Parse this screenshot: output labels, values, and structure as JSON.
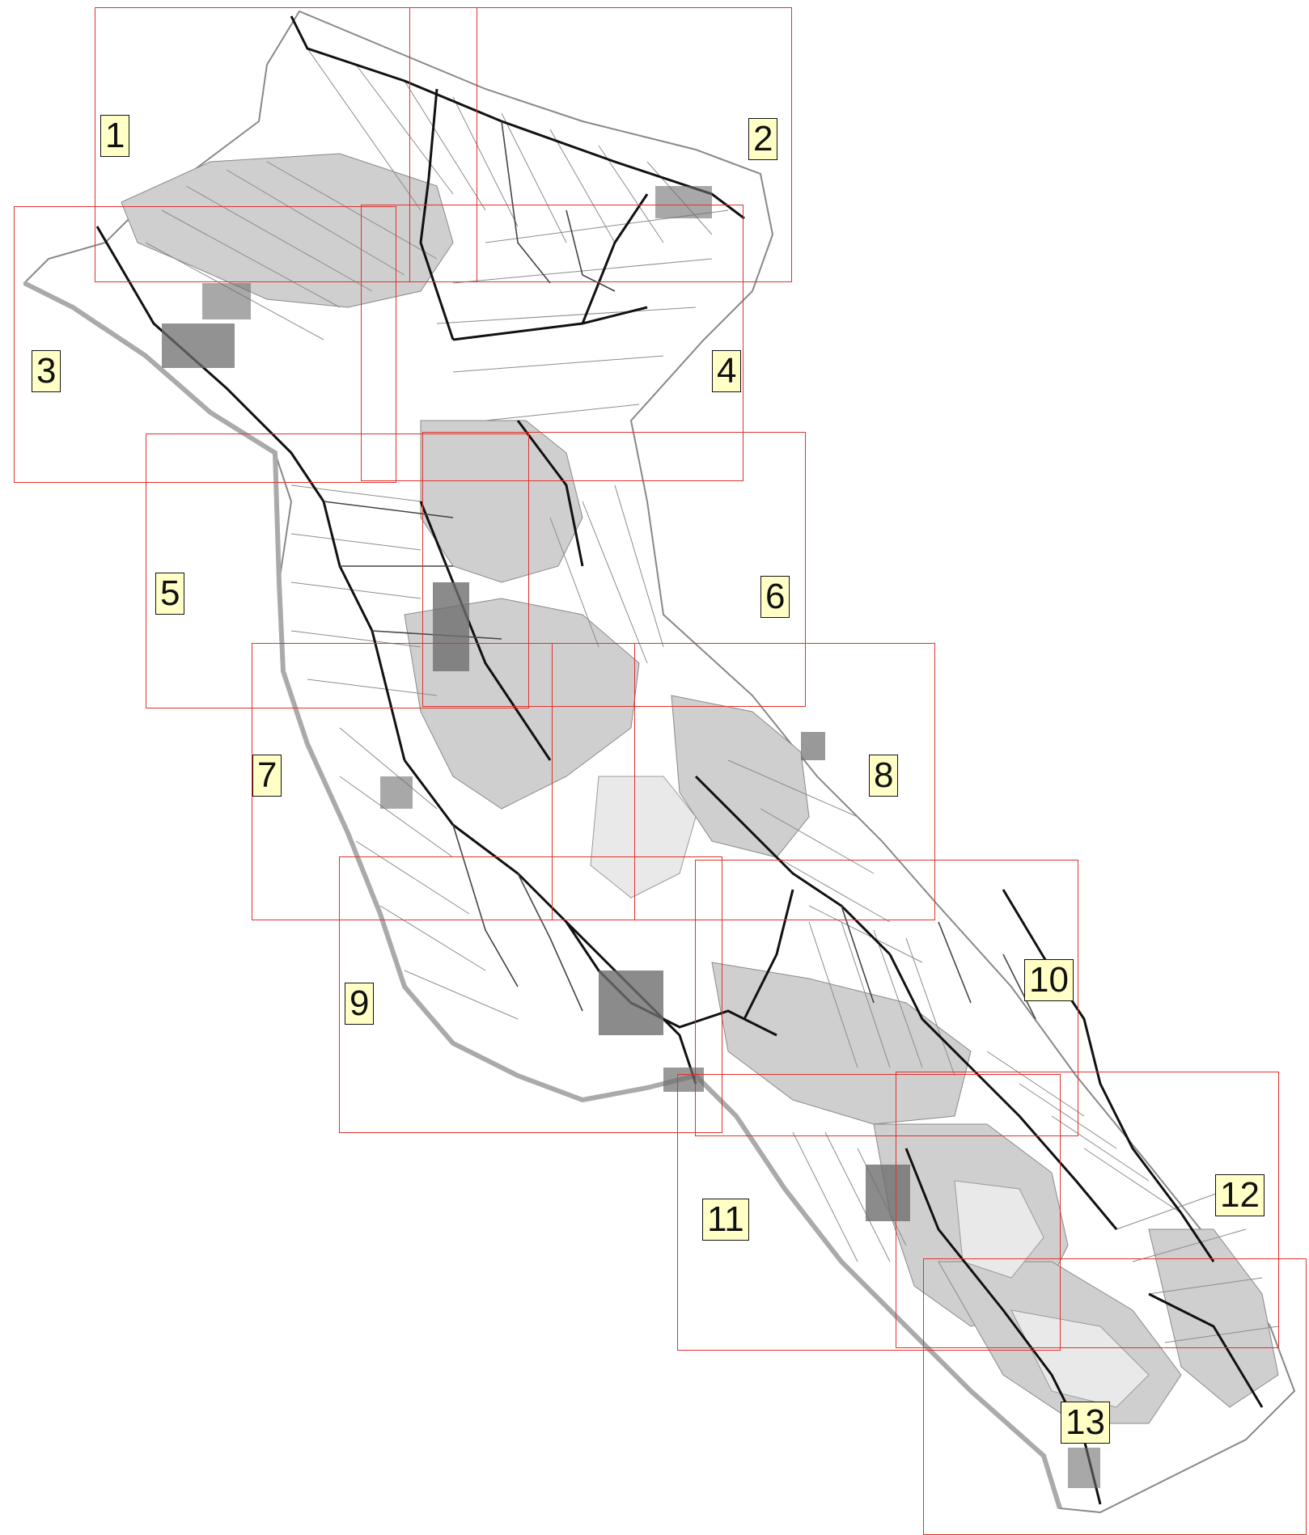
{
  "map": {
    "colors": {
      "background": "#ffffff",
      "sheet_border": "#e0322c",
      "label_fill": "#ffffc6",
      "urban_fill": "#cfcfcf",
      "park_fill": "#e6e6e6",
      "main_road": "#111111",
      "minor_road": "#6e6e6e",
      "building": "#777777"
    },
    "sheets": [
      {
        "id": "sheet-1",
        "label": "1"
      },
      {
        "id": "sheet-2",
        "label": "2"
      },
      {
        "id": "sheet-3",
        "label": "3"
      },
      {
        "id": "sheet-4",
        "label": "4"
      },
      {
        "id": "sheet-5",
        "label": "5"
      },
      {
        "id": "sheet-6",
        "label": "6"
      },
      {
        "id": "sheet-7",
        "label": "7"
      },
      {
        "id": "sheet-8",
        "label": "8"
      },
      {
        "id": "sheet-9",
        "label": "9"
      },
      {
        "id": "sheet-10",
        "label": "10"
      },
      {
        "id": "sheet-11",
        "label": "11"
      },
      {
        "id": "sheet-12",
        "label": "12"
      },
      {
        "id": "sheet-13",
        "label": "13"
      }
    ]
  }
}
